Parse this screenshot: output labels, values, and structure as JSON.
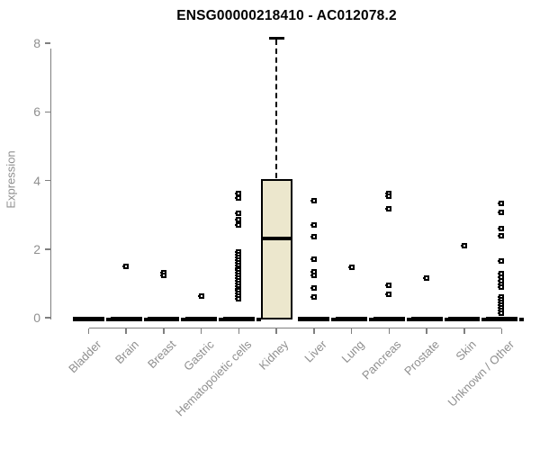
{
  "chart_data": {
    "type": "boxplot",
    "title": "ENSG00000218410 - AC012078.2",
    "xlabel": "",
    "ylabel": "Expression",
    "ylim": [
      0,
      8
    ],
    "yticks": [
      0,
      2,
      4,
      6,
      8
    ],
    "grid": false,
    "legend": "none",
    "categories": [
      "Bladder",
      "Brain",
      "Breast",
      "Gastric",
      "Hematopoietic cells",
      "Kidney",
      "Liver",
      "Lung",
      "Pancreas",
      "Prostate",
      "Skin",
      "Unknown / Other"
    ],
    "series": [
      {
        "name": "Bladder",
        "box": {
          "q1": 0,
          "median": 0,
          "q3": 0,
          "whisker_low": 0,
          "whisker_high": 0
        },
        "outliers": []
      },
      {
        "name": "Brain",
        "box": {
          "q1": 0,
          "median": 0,
          "q3": 0,
          "whisker_low": 0,
          "whisker_high": 0
        },
        "outliers": [
          1.5
        ]
      },
      {
        "name": "Breast",
        "box": {
          "q1": 0,
          "median": 0,
          "q3": 0,
          "whisker_low": 0,
          "whisker_high": 0
        },
        "outliers": [
          1.32,
          1.24
        ]
      },
      {
        "name": "Gastric",
        "box": {
          "q1": 0,
          "median": 0,
          "q3": 0,
          "whisker_low": 0,
          "whisker_high": 0
        },
        "outliers": [
          0.62
        ]
      },
      {
        "name": "Hematopoietic cells",
        "box": {
          "q1": 0,
          "median": 0,
          "q3": 0,
          "whisker_low": 0,
          "whisker_high": 0
        },
        "outliers": [
          3.61,
          3.49,
          3.05,
          2.85,
          2.7,
          1.92,
          1.83,
          1.75,
          1.68,
          1.6,
          1.53,
          1.45,
          1.38,
          1.3,
          1.23,
          1.15,
          1.08,
          1.0,
          0.93,
          0.85,
          0.78,
          0.7,
          0.62,
          0.55
        ]
      },
      {
        "name": "Kidney",
        "box": {
          "q1": 0,
          "median": 2.3,
          "q3": 4.05,
          "whisker_low": 0,
          "whisker_high": 8.15
        },
        "outliers": []
      },
      {
        "name": "Liver",
        "box": {
          "q1": 0,
          "median": 0,
          "q3": 0,
          "whisker_low": 0,
          "whisker_high": 0
        },
        "outliers": [
          3.42,
          2.7,
          2.37,
          1.7,
          1.35,
          1.22,
          0.87,
          0.6
        ]
      },
      {
        "name": "Lung",
        "box": {
          "q1": 0,
          "median": 0,
          "q3": 0,
          "whisker_low": 0,
          "whisker_high": 0
        },
        "outliers": [
          1.47
        ]
      },
      {
        "name": "Pancreas",
        "box": {
          "q1": 0,
          "median": 0,
          "q3": 0,
          "whisker_low": 0,
          "whisker_high": 0
        },
        "outliers": [
          3.62,
          3.55,
          3.18,
          0.95,
          0.68
        ]
      },
      {
        "name": "Prostate",
        "box": {
          "q1": 0,
          "median": 0,
          "q3": 0,
          "whisker_low": 0,
          "whisker_high": 0
        },
        "outliers": [
          1.15
        ]
      },
      {
        "name": "Skin",
        "box": {
          "q1": 0,
          "median": 0,
          "q3": 0,
          "whisker_low": 0,
          "whisker_high": 0
        },
        "outliers": [
          2.1
        ]
      },
      {
        "name": "Unknown / Other",
        "box": {
          "q1": 0,
          "median": 0,
          "q3": 0,
          "whisker_low": 0,
          "whisker_high": 0
        },
        "outliers": [
          3.34,
          3.08,
          2.6,
          2.4,
          1.65,
          1.28,
          1.18,
          1.08,
          0.98,
          0.88,
          0.6,
          0.52,
          0.44,
          0.36,
          0.28,
          0.2,
          0.13
        ]
      }
    ],
    "colors": {
      "box_fill": "#ece7cd",
      "axis_line": "#7f7f7f",
      "axis_text": "#8f8f8f",
      "data_ink": "#000000",
      "background": "#ffffff"
    }
  }
}
